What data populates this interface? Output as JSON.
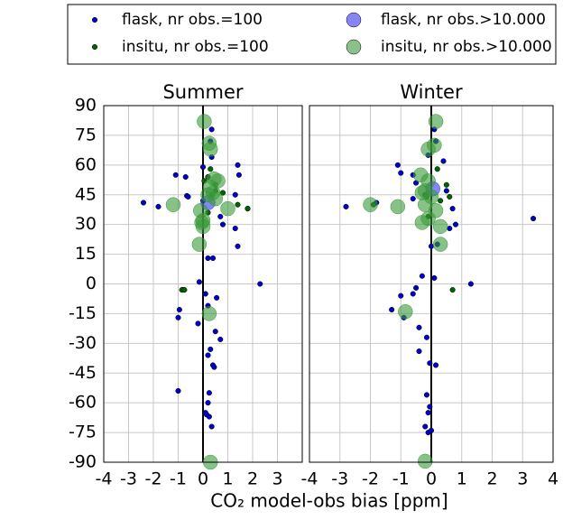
{
  "xlabel": "CO₂ model-obs bias [ppm]",
  "chart_data": [
    {
      "type": "scatter",
      "title": "Summer",
      "xlim": [
        -4,
        4
      ],
      "xticks": [
        -4,
        -3,
        -2,
        -1,
        0,
        1,
        2,
        3
      ],
      "ylim": [
        -90,
        90
      ],
      "yticks": [
        -90,
        -75,
        -60,
        -45,
        -30,
        -15,
        0,
        15,
        30,
        45,
        60,
        75,
        90
      ],
      "grid": true,
      "series": [
        {
          "name": "flask, nr obs.=100",
          "color": "#0000cc",
          "x": [
            0.35,
            0.3,
            0.35,
            0.0,
            1.4,
            1.45,
            -1.1,
            -0.7,
            -0.65,
            -0.6,
            -2.4,
            -1.8,
            1.3,
            1.8,
            1.3,
            1.4,
            0.8,
            0.7,
            0.2,
            0.4,
            2.3,
            -0.15,
            0.1,
            0.55,
            -0.8,
            0.2,
            -0.95,
            -1.0,
            -0.2,
            0.5,
            0.7,
            0.3,
            0.2,
            0.4,
            0.45,
            -1.0,
            0.25,
            0.2,
            0.1,
            0.15,
            0.25,
            0.35
          ],
          "values": [
            78,
            72,
            64,
            59,
            60,
            55,
            55,
            54,
            44.5,
            44,
            41,
            39,
            45,
            38,
            28,
            19,
            30,
            34,
            13,
            13,
            0,
            1,
            -5,
            -7,
            -3,
            -11,
            -13,
            -17,
            -20,
            -24,
            -28,
            -33,
            -36,
            -41,
            -42,
            -54,
            -55,
            -60,
            -65,
            -66,
            -67,
            -72
          ]
        },
        {
          "name": "insitu, nr obs.=100",
          "color": "#006400",
          "x": [
            -0.85,
            -0.75,
            0.05,
            0.2,
            0.35,
            0.5,
            0.8,
            0.5,
            1.8,
            0.0,
            0.2,
            1.4,
            0.3
          ],
          "values": [
            -3,
            -3,
            52,
            54,
            45,
            47,
            46,
            50,
            38,
            42,
            36,
            40,
            58
          ]
        },
        {
          "name": "flask, nr obs.>10.000",
          "color": "#3333ee",
          "x": [
            0.2
          ],
          "values": [
            41
          ]
        },
        {
          "name": "insitu, nr obs.>10.000",
          "color": "#3a9a3a",
          "x": [
            0.05,
            0.25,
            0.3,
            0.45,
            0.6,
            0.3,
            0.2,
            0.5,
            1.0,
            -0.1,
            0.0,
            0.0,
            -0.15,
            -1.2,
            0.25,
            0.3,
            0.4,
            -0.05
          ],
          "values": [
            82,
            71,
            68,
            53,
            52,
            49,
            45,
            43,
            38,
            37,
            32,
            29,
            20,
            40,
            -15,
            -90,
            46,
            31
          ]
        }
      ]
    },
    {
      "type": "scatter",
      "title": "Winter",
      "xlim": [
        -4,
        4
      ],
      "xticks": [
        -4,
        -3,
        -2,
        -1,
        0,
        1,
        2,
        3,
        4
      ],
      "ylim": [
        -90,
        90
      ],
      "yticks": [
        -90,
        -75,
        -60,
        -45,
        -30,
        -15,
        0,
        15,
        30,
        45,
        60,
        75,
        90
      ],
      "grid": true,
      "series": [
        {
          "color": "#0000cc",
          "x": [
            0.1,
            0.15,
            -0.1,
            0.4,
            -1.1,
            -1.0,
            -0.6,
            -0.5,
            -0.2,
            0.5,
            0.7,
            0.8,
            0.6,
            -2.8,
            -1.8,
            -0.6,
            0.2,
            0.0,
            3.35,
            1.3,
            -0.3,
            0.1,
            -0.5,
            -0.6,
            -1.0,
            -1.3,
            -0.9,
            -0.4,
            -0.15,
            -0.4,
            -0.05,
            0.15,
            -0.15,
            -0.05,
            -0.1,
            -0.2,
            -0.1,
            0.0
          ],
          "values": [
            78,
            72,
            65,
            62,
            60,
            56,
            55,
            51,
            45,
            47,
            38,
            30,
            28,
            39,
            41,
            43,
            20,
            19,
            33,
            0,
            4,
            3,
            -2,
            -5,
            -6,
            -13,
            -17,
            -22,
            -27,
            -34,
            -40,
            -41,
            -56,
            -62,
            -65,
            -72,
            -75,
            -74
          ]
        },
        {
          "color": "#006400",
          "x": [
            0.7,
            -0.15,
            0.3,
            0.5,
            0.6,
            0.2,
            -0.1,
            -1.9
          ],
          "values": [
            -3,
            44,
            42,
            50,
            44,
            58,
            34,
            40
          ]
        },
        {
          "color": "#3333ee",
          "x": [
            0.05
          ],
          "values": [
            48
          ]
        },
        {
          "color": "#3a9a3a",
          "x": [
            0.15,
            -0.1,
            0.1,
            -0.35,
            -0.1,
            -0.2,
            -0.3,
            0.0,
            -0.2,
            -0.3,
            0.3,
            0.15,
            -0.1,
            0.3,
            -0.85,
            -1.1,
            -2.0,
            -0.2
          ],
          "values": [
            82,
            68,
            70,
            55,
            52,
            47,
            46,
            44,
            40,
            31,
            29,
            37,
            33,
            20,
            -14,
            39,
            40,
            -89.5
          ]
        }
      ]
    }
  ]
}
